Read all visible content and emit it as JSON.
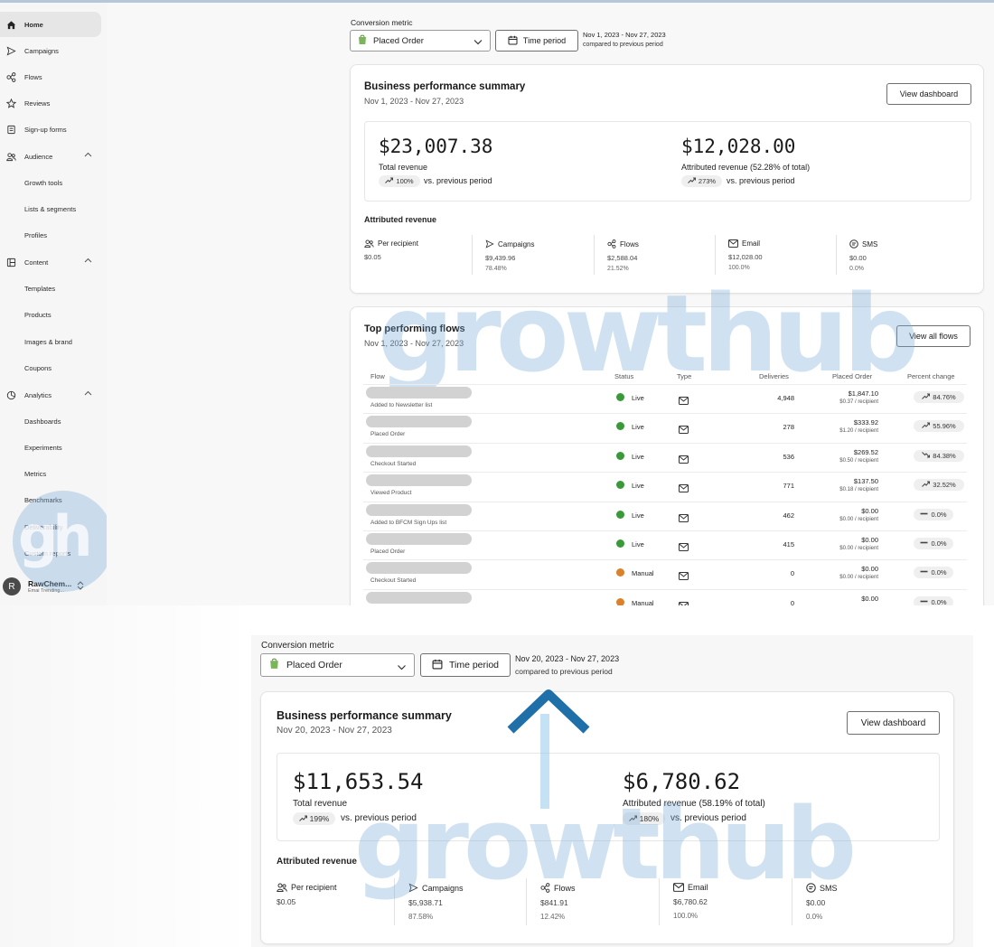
{
  "sidebar": {
    "items": [
      {
        "label": "Home",
        "icon": "home-icon"
      },
      {
        "label": "Campaigns",
        "icon": "send-icon"
      },
      {
        "label": "Flows",
        "icon": "flows-icon"
      },
      {
        "label": "Reviews",
        "icon": "star-icon"
      },
      {
        "label": "Sign-up forms",
        "icon": "form-icon"
      },
      {
        "label": "Audience",
        "icon": "people-icon"
      },
      {
        "label": "Growth tools"
      },
      {
        "label": "Lists & segments"
      },
      {
        "label": "Profiles"
      },
      {
        "label": "Content",
        "icon": "content-icon"
      },
      {
        "label": "Templates"
      },
      {
        "label": "Products"
      },
      {
        "label": "Images & brand"
      },
      {
        "label": "Coupons"
      },
      {
        "label": "Analytics",
        "icon": "analytics-icon"
      },
      {
        "label": "Dashboards"
      },
      {
        "label": "Experiments"
      },
      {
        "label": "Metrics"
      },
      {
        "label": "Benchmarks"
      },
      {
        "label": "Deliverability"
      },
      {
        "label": "Custom reports"
      }
    ],
    "account": {
      "initial": "R",
      "name": "RawChem...",
      "sub": "Emai Trending..."
    }
  },
  "top": {
    "conversion_label": "Conversion metric",
    "metric_value": "Placed Order",
    "time_period_label": "Time period",
    "date_range": "Nov 1, 2023 - Nov 27, 2023",
    "compared_text": "compared to previous period",
    "summary": {
      "title": "Business performance summary",
      "dates": "Nov 1, 2023 - Nov 27, 2023",
      "view_button": "View dashboard",
      "total_revenue": "$23,007.38",
      "total_revenue_label": "Total revenue",
      "total_change": "100%",
      "vs_text": "vs. previous period",
      "attributed_value": "$12,028.00",
      "attributed_label": "Attributed revenue (52.28% of total)",
      "attributed_change": "273%",
      "attributed_heading": "Attributed revenue",
      "metrics": [
        {
          "label": "Per recipient",
          "value": "$0.05",
          "pct": ""
        },
        {
          "label": "Campaigns",
          "value": "$9,439.96",
          "pct": "78.48%"
        },
        {
          "label": "Flows",
          "value": "$2,588.04",
          "pct": "21.52%"
        },
        {
          "label": "Email",
          "value": "$12,028.00",
          "pct": "100.0%"
        },
        {
          "label": "SMS",
          "value": "$0.00",
          "pct": "0.0%"
        }
      ]
    },
    "flows": {
      "title": "Top performing flows",
      "dates": "Nov 1, 2023 - Nov 27, 2023",
      "view_button": "View all flows",
      "headers": [
        "Flow",
        "Status",
        "Type",
        "Deliveries",
        "Placed Order",
        "Percent change"
      ],
      "rows": [
        {
          "sub": "Added to Newsletter list",
          "status": "Live",
          "deliveries": "4,948",
          "po": "$1,847.10",
          "per": "$0.37 / recipient",
          "change": "84.76%",
          "dir": "up"
        },
        {
          "sub": "Placed Order",
          "status": "Live",
          "deliveries": "278",
          "po": "$333.92",
          "per": "$1.20 / recipient",
          "change": "55.96%",
          "dir": "up"
        },
        {
          "sub": "Checkout Started",
          "status": "Live",
          "deliveries": "536",
          "po": "$269.52",
          "per": "$0.50 / recipient",
          "change": "84.38%",
          "dir": "down"
        },
        {
          "sub": "Viewed Product",
          "status": "Live",
          "deliveries": "771",
          "po": "$137.50",
          "per": "$0.18 / recipient",
          "change": "32.52%",
          "dir": "up"
        },
        {
          "sub": "Added to BFCM Sign Ups list",
          "status": "Live",
          "deliveries": "462",
          "po": "$0.00",
          "per": "$0.00 / recipient",
          "change": "0.0%",
          "dir": "flat"
        },
        {
          "sub": "Placed Order",
          "status": "Live",
          "deliveries": "415",
          "po": "$0.00",
          "per": "$0.00 / recipient",
          "change": "0.0%",
          "dir": "flat"
        },
        {
          "sub": "Checkout Started",
          "status": "Manual",
          "deliveries": "0",
          "po": "$0.00",
          "per": "$0.00 / recipient",
          "change": "0.0%",
          "dir": "flat"
        },
        {
          "sub": "",
          "status": "Manual",
          "deliveries": "0",
          "po": "$0.00",
          "per": "",
          "change": "0.0%",
          "dir": "flat"
        }
      ]
    }
  },
  "bottom": {
    "conversion_label": "Conversion metric",
    "metric_value": "Placed Order",
    "time_period_label": "Time period",
    "date_range": "Nov 20, 2023 - Nov 27, 2023",
    "compared_text": "compared to previous period",
    "summary": {
      "title": "Business performance summary",
      "dates": "Nov 20, 2023 - Nov 27, 2023",
      "view_button": "View dashboard",
      "total_revenue": "$11,653.54",
      "total_revenue_label": "Total revenue",
      "total_change": "199%",
      "vs_text": "vs. previous period",
      "attributed_value": "$6,780.62",
      "attributed_label": "Attributed revenue (58.19% of total)",
      "attributed_change": "180%",
      "attributed_heading": "Attributed revenue",
      "metrics": [
        {
          "label": "Per recipient",
          "value": "$0.05",
          "pct": ""
        },
        {
          "label": "Campaigns",
          "value": "$5,938.71",
          "pct": "87.58%"
        },
        {
          "label": "Flows",
          "value": "$841.91",
          "pct": "12.42%"
        },
        {
          "label": "Email",
          "value": "$6,780.62",
          "pct": "100.0%"
        },
        {
          "label": "SMS",
          "value": "$0.00",
          "pct": "0.0%"
        }
      ]
    }
  },
  "watermark": {
    "text": "growthub",
    "logo": "gh"
  },
  "colors": {
    "live": "#3a9a3a",
    "manual": "#d9822b",
    "accent": "#1f6fa8",
    "watermark": "#8fb7dc"
  }
}
